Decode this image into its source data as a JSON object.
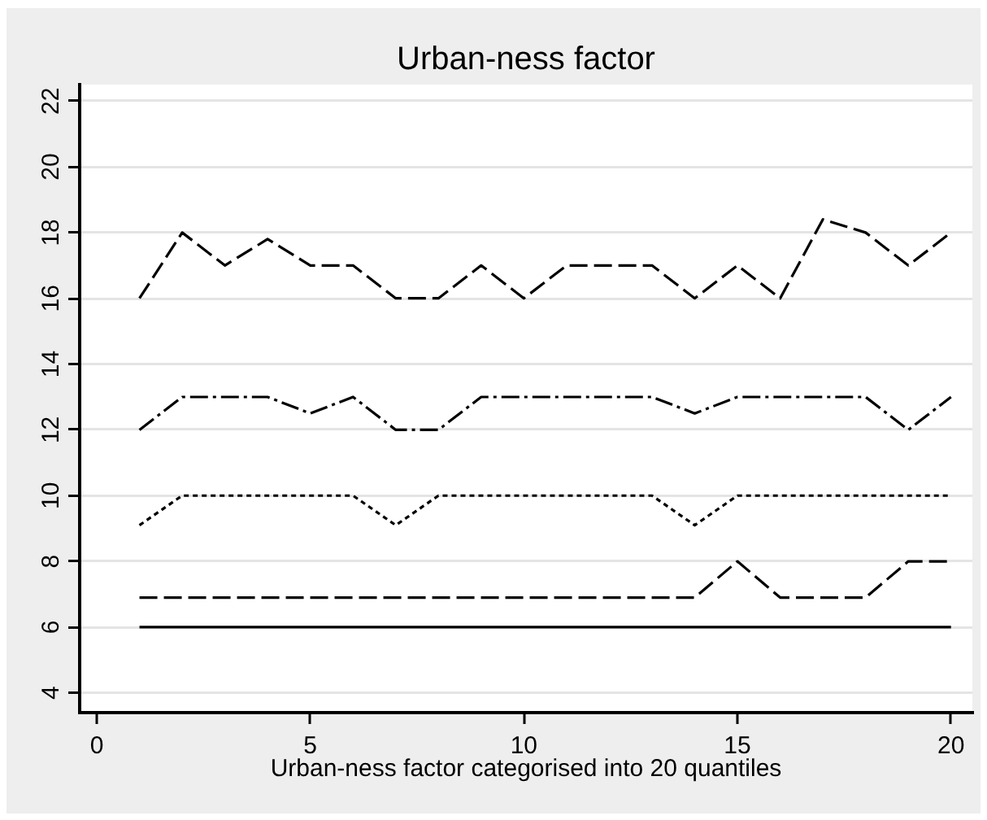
{
  "chart_data": {
    "type": "line",
    "title": "Urban-ness factor",
    "xlabel": "Urban-ness factor categorised into 20 quantiles",
    "x": [
      1,
      2,
      3,
      4,
      5,
      6,
      7,
      8,
      9,
      10,
      11,
      12,
      13,
      14,
      15,
      16,
      17,
      18,
      19,
      20
    ],
    "series": [
      {
        "color": "#000000",
        "line_style": "dashed",
        "values": [
          16,
          18,
          17,
          17.8,
          17,
          17,
          16,
          16,
          17,
          16,
          17,
          17,
          17,
          16,
          17,
          16,
          18.4,
          18,
          17,
          18
        ]
      },
      {
        "color": "#000000",
        "line_style": "dashdot",
        "values": [
          12,
          13,
          13,
          13,
          12.5,
          13,
          12,
          12,
          13,
          13,
          13,
          13,
          13,
          12.5,
          13,
          13,
          13,
          13,
          12,
          13
        ]
      },
      {
        "color": "#000000",
        "line_style": "dotted",
        "values": [
          9.1,
          10,
          10,
          10,
          10,
          10,
          9.1,
          10,
          10,
          10,
          10,
          10,
          10,
          9.1,
          10,
          10,
          10,
          10,
          10,
          10
        ]
      },
      {
        "color": "#000000",
        "line_style": "dashed",
        "values": [
          6.9,
          6.9,
          6.9,
          6.9,
          6.9,
          6.9,
          6.9,
          6.9,
          6.9,
          6.9,
          6.9,
          6.9,
          6.9,
          6.9,
          8,
          6.9,
          6.9,
          6.9,
          8,
          8
        ]
      },
      {
        "color": "#000000",
        "line_style": "solid",
        "values": [
          6,
          6,
          6,
          6,
          6,
          6,
          6,
          6,
          6,
          6,
          6,
          6,
          6,
          6,
          6,
          6,
          6,
          6,
          6,
          6
        ]
      }
    ],
    "xlim": [
      -0.4,
      20.5
    ],
    "xticks": [
      0,
      5,
      10,
      15,
      20
    ],
    "ylim": [
      3.4,
      22.5
    ],
    "yticks": [
      4,
      6,
      8,
      10,
      12,
      14,
      16,
      18,
      20,
      22
    ],
    "grid": "y"
  }
}
